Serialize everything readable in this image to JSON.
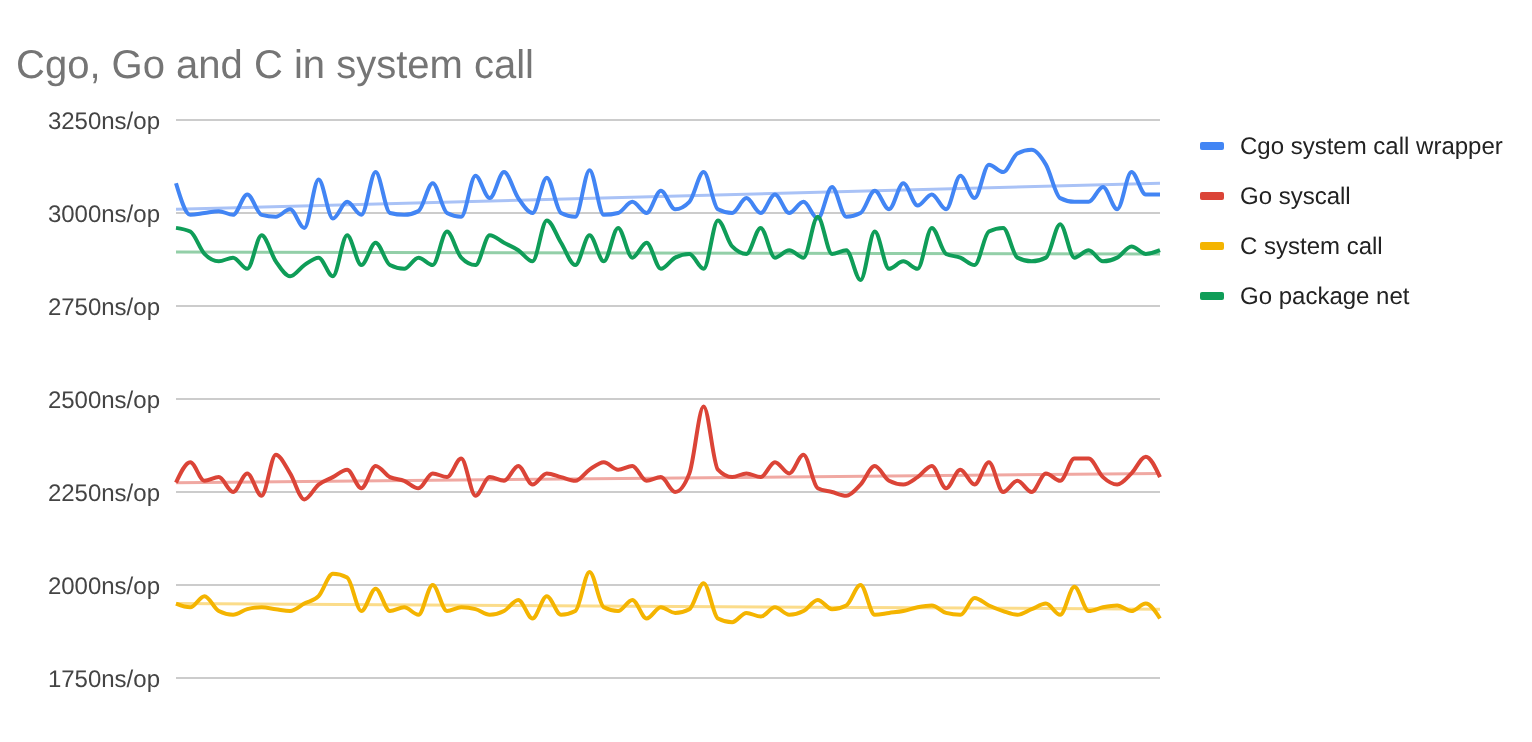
{
  "chart_data": {
    "type": "line",
    "title": "Cgo, Go and C in system call",
    "categories": [
      null,
      null,
      null,
      null,
      null,
      null,
      null,
      null,
      null,
      null,
      null,
      null,
      null,
      null,
      null,
      null,
      null,
      null,
      null,
      null,
      null,
      null,
      null,
      null,
      null,
      null,
      null,
      null,
      null,
      null,
      null,
      null,
      null,
      null,
      null,
      null,
      null,
      null,
      null,
      null,
      null,
      null,
      null,
      null,
      null,
      null,
      null,
      null,
      null,
      null,
      null,
      null,
      null,
      null,
      null,
      null,
      null,
      null,
      null,
      null,
      null,
      null,
      null,
      null,
      null,
      null,
      null,
      null,
      null,
      null
    ],
    "ylim": [
      1750,
      3250
    ],
    "yticks": [
      {
        "value": 1750,
        "label": "1750ns/op"
      },
      {
        "value": 2000,
        "label": "2000ns/op"
      },
      {
        "value": 2250,
        "label": "2250ns/op"
      },
      {
        "value": 2500,
        "label": "2500ns/op"
      },
      {
        "value": 2750,
        "label": "2750ns/op"
      },
      {
        "value": 3000,
        "label": "3000ns/op"
      },
      {
        "value": 3250,
        "label": "3250ns/op"
      }
    ],
    "grid": "y",
    "legend": "top right",
    "marker": "none",
    "series": [
      {
        "name": "Cgo system call wrapper",
        "color": "#4285f4",
        "values": [
          3080,
          2995,
          3000,
          3005,
          2995,
          3050,
          2995,
          2990,
          3010,
          2960,
          3090,
          2985,
          3030,
          2995,
          3110,
          3000,
          2995,
          3005,
          3080,
          3000,
          2990,
          3100,
          3040,
          3110,
          3040,
          3000,
          3095,
          3000,
          2990,
          3115,
          2995,
          3000,
          3030,
          3000,
          3060,
          3010,
          3030,
          3110,
          3010,
          3000,
          3040,
          3000,
          3050,
          3000,
          3030,
          2985,
          3070,
          2990,
          3000,
          3060,
          3010,
          3080,
          3020,
          3050,
          3010,
          3100,
          3040,
          3130,
          3110,
          3160,
          3170,
          3130,
          3040,
          3030,
          3030,
          3070,
          3010,
          3110,
          3050,
          3050
        ]
      },
      {
        "name": "Go syscall",
        "color": "#db4437",
        "values": [
          2275,
          2330,
          2280,
          2290,
          2250,
          2300,
          2240,
          2350,
          2300,
          2230,
          2270,
          2290,
          2310,
          2260,
          2320,
          2290,
          2280,
          2260,
          2300,
          2290,
          2340,
          2240,
          2290,
          2280,
          2320,
          2270,
          2300,
          2290,
          2280,
          2310,
          2330,
          2310,
          2320,
          2280,
          2290,
          2250,
          2300,
          2480,
          2310,
          2290,
          2300,
          2290,
          2330,
          2300,
          2350,
          2260,
          2250,
          2240,
          2270,
          2320,
          2280,
          2270,
          2290,
          2320,
          2260,
          2310,
          2270,
          2330,
          2250,
          2280,
          2250,
          2300,
          2280,
          2340,
          2340,
          2290,
          2270,
          2300,
          2345,
          2290
        ]
      },
      {
        "name": "C system call",
        "color": "#f4b400",
        "values": [
          1950,
          1940,
          1970,
          1930,
          1920,
          1935,
          1940,
          1935,
          1930,
          1950,
          1970,
          2030,
          2020,
          1930,
          1990,
          1930,
          1940,
          1920,
          2000,
          1930,
          1940,
          1935,
          1920,
          1930,
          1960,
          1910,
          1970,
          1920,
          1930,
          2035,
          1940,
          1930,
          1960,
          1910,
          1940,
          1925,
          1935,
          2005,
          1910,
          1900,
          1925,
          1915,
          1940,
          1920,
          1930,
          1960,
          1935,
          1945,
          2000,
          1920,
          1925,
          1930,
          1940,
          1945,
          1925,
          1920,
          1965,
          1945,
          1930,
          1920,
          1935,
          1950,
          1920,
          1995,
          1930,
          1940,
          1945,
          1930,
          1950,
          1910
        ]
      },
      {
        "name": "Go package net",
        "color": "#0f9d58",
        "values": [
          2960,
          2950,
          2890,
          2870,
          2880,
          2850,
          2940,
          2870,
          2830,
          2860,
          2880,
          2830,
          2940,
          2860,
          2920,
          2860,
          2850,
          2880,
          2860,
          2950,
          2880,
          2860,
          2940,
          2920,
          2900,
          2870,
          2980,
          2920,
          2860,
          2940,
          2870,
          2960,
          2880,
          2920,
          2850,
          2880,
          2890,
          2850,
          2980,
          2910,
          2890,
          2960,
          2880,
          2900,
          2880,
          2990,
          2890,
          2900,
          2820,
          2950,
          2850,
          2870,
          2850,
          2960,
          2890,
          2880,
          2860,
          2950,
          2960,
          2880,
          2870,
          2880,
          2970,
          2880,
          2900,
          2870,
          2880,
          2910,
          2890,
          2900
        ]
      },
      {
        "color": "#a9c2f6",
        "values": [
          3010,
          null,
          null,
          null,
          null,
          null,
          null,
          null,
          null,
          null,
          null,
          null,
          null,
          null,
          null,
          null,
          null,
          null,
          null,
          null,
          null,
          null,
          null,
          null,
          null,
          null,
          null,
          null,
          null,
          null,
          null,
          null,
          null,
          null,
          null,
          null,
          null,
          null,
          null,
          null,
          null,
          null,
          null,
          null,
          null,
          null,
          null,
          null,
          null,
          null,
          null,
          null,
          null,
          null,
          null,
          null,
          null,
          null,
          null,
          null,
          null,
          null,
          null,
          null,
          null,
          null,
          null,
          null,
          null,
          3080
        ]
      },
      {
        "color": "#f0a8a2",
        "values": [
          2275,
          null,
          null,
          null,
          null,
          null,
          null,
          null,
          null,
          null,
          null,
          null,
          null,
          null,
          null,
          null,
          null,
          null,
          null,
          null,
          null,
          null,
          null,
          null,
          null,
          null,
          null,
          null,
          null,
          null,
          null,
          null,
          null,
          null,
          null,
          null,
          null,
          null,
          null,
          null,
          null,
          null,
          null,
          null,
          null,
          null,
          null,
          null,
          null,
          null,
          null,
          null,
          null,
          null,
          null,
          null,
          null,
          null,
          null,
          null,
          null,
          null,
          null,
          null,
          null,
          null,
          null,
          null,
          null,
          2300
        ]
      },
      {
        "color": "#fbdc8a",
        "values": [
          1950,
          null,
          null,
          null,
          null,
          null,
          null,
          null,
          null,
          null,
          null,
          null,
          null,
          null,
          null,
          null,
          null,
          null,
          null,
          null,
          null,
          null,
          null,
          null,
          null,
          null,
          null,
          null,
          null,
          null,
          null,
          null,
          null,
          null,
          null,
          null,
          null,
          null,
          null,
          null,
          null,
          null,
          null,
          null,
          null,
          null,
          null,
          null,
          null,
          null,
          null,
          null,
          null,
          null,
          null,
          null,
          null,
          null,
          null,
          null,
          null,
          null,
          null,
          null,
          null,
          null,
          null,
          null,
          null,
          1935
        ]
      },
      {
        "color": "#93cfa8",
        "values": [
          2895,
          null,
          null,
          null,
          null,
          null,
          null,
          null,
          null,
          null,
          null,
          null,
          null,
          null,
          null,
          null,
          null,
          null,
          null,
          null,
          null,
          null,
          null,
          null,
          null,
          null,
          null,
          null,
          null,
          null,
          null,
          null,
          null,
          null,
          null,
          null,
          null,
          null,
          null,
          null,
          null,
          null,
          null,
          null,
          null,
          null,
          null,
          null,
          null,
          null,
          null,
          null,
          null,
          null,
          null,
          null,
          null,
          null,
          null,
          null,
          null,
          null,
          null,
          null,
          null,
          null,
          null,
          null,
          null,
          2890
        ]
      }
    ]
  }
}
